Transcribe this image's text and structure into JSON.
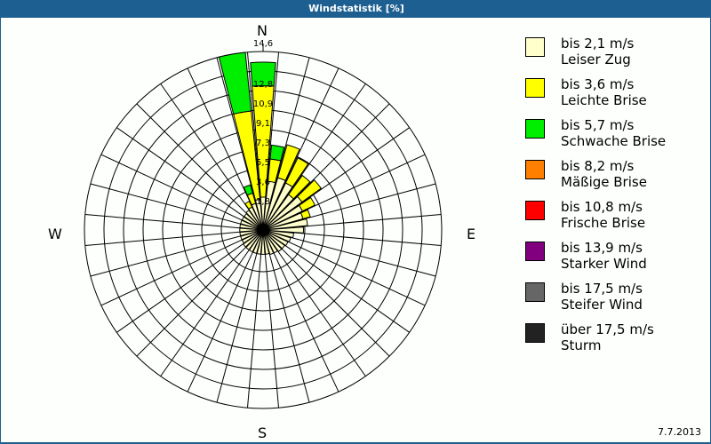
{
  "window": {
    "title": "Windstatistik [%]",
    "date": "7.7.2013",
    "colors": {
      "frame": "#1d5f91",
      "background": "#fcfffc"
    }
  },
  "compass": {
    "n": "N",
    "e": "E",
    "s": "S",
    "w": "W"
  },
  "legend": [
    {
      "line1": "bis 2,1 m/s",
      "line2": "Leiser Zug",
      "color": "#ffffcc"
    },
    {
      "line1": "bis 3,6 m/s",
      "line2": "Leichte Brise",
      "color": "#ffff00"
    },
    {
      "line1": "bis 5,7 m/s",
      "line2": "Schwache Brise",
      "color": "#00ee00"
    },
    {
      "line1": "bis 8,2 m/s",
      "line2": "Mäßige Brise",
      "color": "#ff8000"
    },
    {
      "line1": "bis 10,8 m/s",
      "line2": "Frische Brise",
      "color": "#ff0000"
    },
    {
      "line1": "bis 13,9 m/s",
      "line2": "Starker Wind",
      "color": "#800080"
    },
    {
      "line1": "bis 17,5 m/s",
      "line2": "Steifer Wind",
      "color": "#666666"
    },
    {
      "line1": "über 17,5 m/s",
      "line2": "Sturm",
      "color": "#222222"
    }
  ],
  "chart_data": {
    "type": "wind-rose (stacked polar bar)",
    "title": "Windstatistik [%]",
    "radial_unit": "%",
    "radial_ticks": [
      "1,8",
      "3,6",
      "5,5",
      "7,3",
      "9,1",
      "10,9",
      "12,8",
      "14,6"
    ],
    "radial_max": 14.6,
    "sector_width_deg": 10,
    "directions_deg": [
      0,
      10,
      20,
      30,
      40,
      50,
      60,
      70,
      80,
      90,
      100,
      110,
      120,
      130,
      140,
      150,
      160,
      170,
      180,
      190,
      200,
      210,
      220,
      230,
      240,
      250,
      260,
      270,
      280,
      290,
      300,
      310,
      320,
      330,
      340,
      350
    ],
    "series": [
      {
        "name": "bis 2,1 m/s Leiser Zug",
        "color": "#ffffcc",
        "values": [
          1.0,
          2.5,
          3.0,
          2.8,
          2.0,
          2.4,
          2.0,
          1.8,
          2.1,
          1.7,
          0.8,
          0.6,
          0.5,
          0.4,
          0.4,
          0.3,
          0.3,
          0.2,
          0.2,
          0.2,
          0.2,
          0.2,
          0.2,
          0.2,
          0.1,
          0.1,
          0.1,
          0.1,
          0.1,
          0.1,
          0.1,
          0.1,
          0.2,
          0.3,
          0.5,
          0.8
        ]
      },
      {
        "name": "bis 3,6 m/s Leichte Brise",
        "color": "#ffff00",
        "values": [
          10.4,
          2.1,
          3.2,
          2.6,
          2.2,
          2.2,
          1.3,
          0.7,
          0,
          0,
          0,
          0,
          0,
          0,
          0,
          0,
          0,
          0,
          0,
          0,
          0,
          0,
          0,
          0,
          0,
          0,
          0,
          0,
          0,
          0,
          0,
          0,
          0,
          0.6,
          1.0,
          8.3
        ]
      },
      {
        "name": "bis 5,7 m/s Schwache Brise",
        "color": "#00ee00",
        "values": [
          2.2,
          1.3,
          0,
          0,
          0,
          0,
          0,
          0,
          0,
          0,
          0,
          0,
          0,
          0,
          0,
          0,
          0,
          0,
          0,
          0,
          0,
          0,
          0,
          0,
          0,
          0,
          0,
          0,
          0,
          0,
          0,
          0,
          0,
          0,
          0.8,
          5.5
        ]
      },
      {
        "name": "bis 8,2 m/s Mäßige Brise",
        "color": "#ff8000",
        "values": [
          0,
          0,
          0,
          0,
          0,
          0,
          0,
          0,
          0,
          0,
          0,
          0,
          0,
          0,
          0,
          0,
          0,
          0,
          0,
          0,
          0,
          0,
          0,
          0,
          0,
          0,
          0,
          0,
          0,
          0,
          0,
          0,
          0,
          0,
          0,
          0
        ]
      },
      {
        "name": "bis 10,8 m/s Frische Brise",
        "color": "#ff0000",
        "values": [
          0,
          0,
          0,
          0,
          0,
          0,
          0,
          0,
          0,
          0,
          0,
          0,
          0,
          0,
          0,
          0,
          0,
          0,
          0,
          0,
          0,
          0,
          0,
          0,
          0,
          0,
          0,
          0,
          0,
          0,
          0,
          0,
          0,
          0,
          0,
          0
        ]
      },
      {
        "name": "bis 13,9 m/s Starker Wind",
        "color": "#800080",
        "values": [
          0,
          0,
          0,
          0,
          0,
          0,
          0,
          0,
          0,
          0,
          0,
          0,
          0,
          0,
          0,
          0,
          0,
          0,
          0,
          0,
          0,
          0,
          0,
          0,
          0,
          0,
          0,
          0,
          0,
          0,
          0,
          0,
          0,
          0,
          0,
          0
        ]
      },
      {
        "name": "bis 17,5 m/s Steifer Wind",
        "color": "#666666",
        "values": [
          0,
          0,
          0,
          0,
          0,
          0,
          0,
          0,
          0,
          0,
          0,
          0,
          0,
          0,
          0,
          0,
          0,
          0,
          0,
          0,
          0,
          0,
          0,
          0,
          0,
          0,
          0,
          0,
          0,
          0,
          0,
          0,
          0,
          0,
          0,
          0
        ]
      },
      {
        "name": "über 17,5 m/s Sturm",
        "color": "#222222",
        "values": [
          0,
          0,
          0,
          0,
          0,
          0,
          0,
          0,
          0,
          0,
          0,
          0,
          0,
          0,
          0,
          0,
          0,
          0,
          0,
          0,
          0,
          0,
          0,
          0,
          0,
          0,
          0,
          0,
          0,
          0,
          0,
          0,
          0,
          0,
          0,
          0
        ]
      }
    ],
    "legend_position": "right",
    "grid": true
  }
}
